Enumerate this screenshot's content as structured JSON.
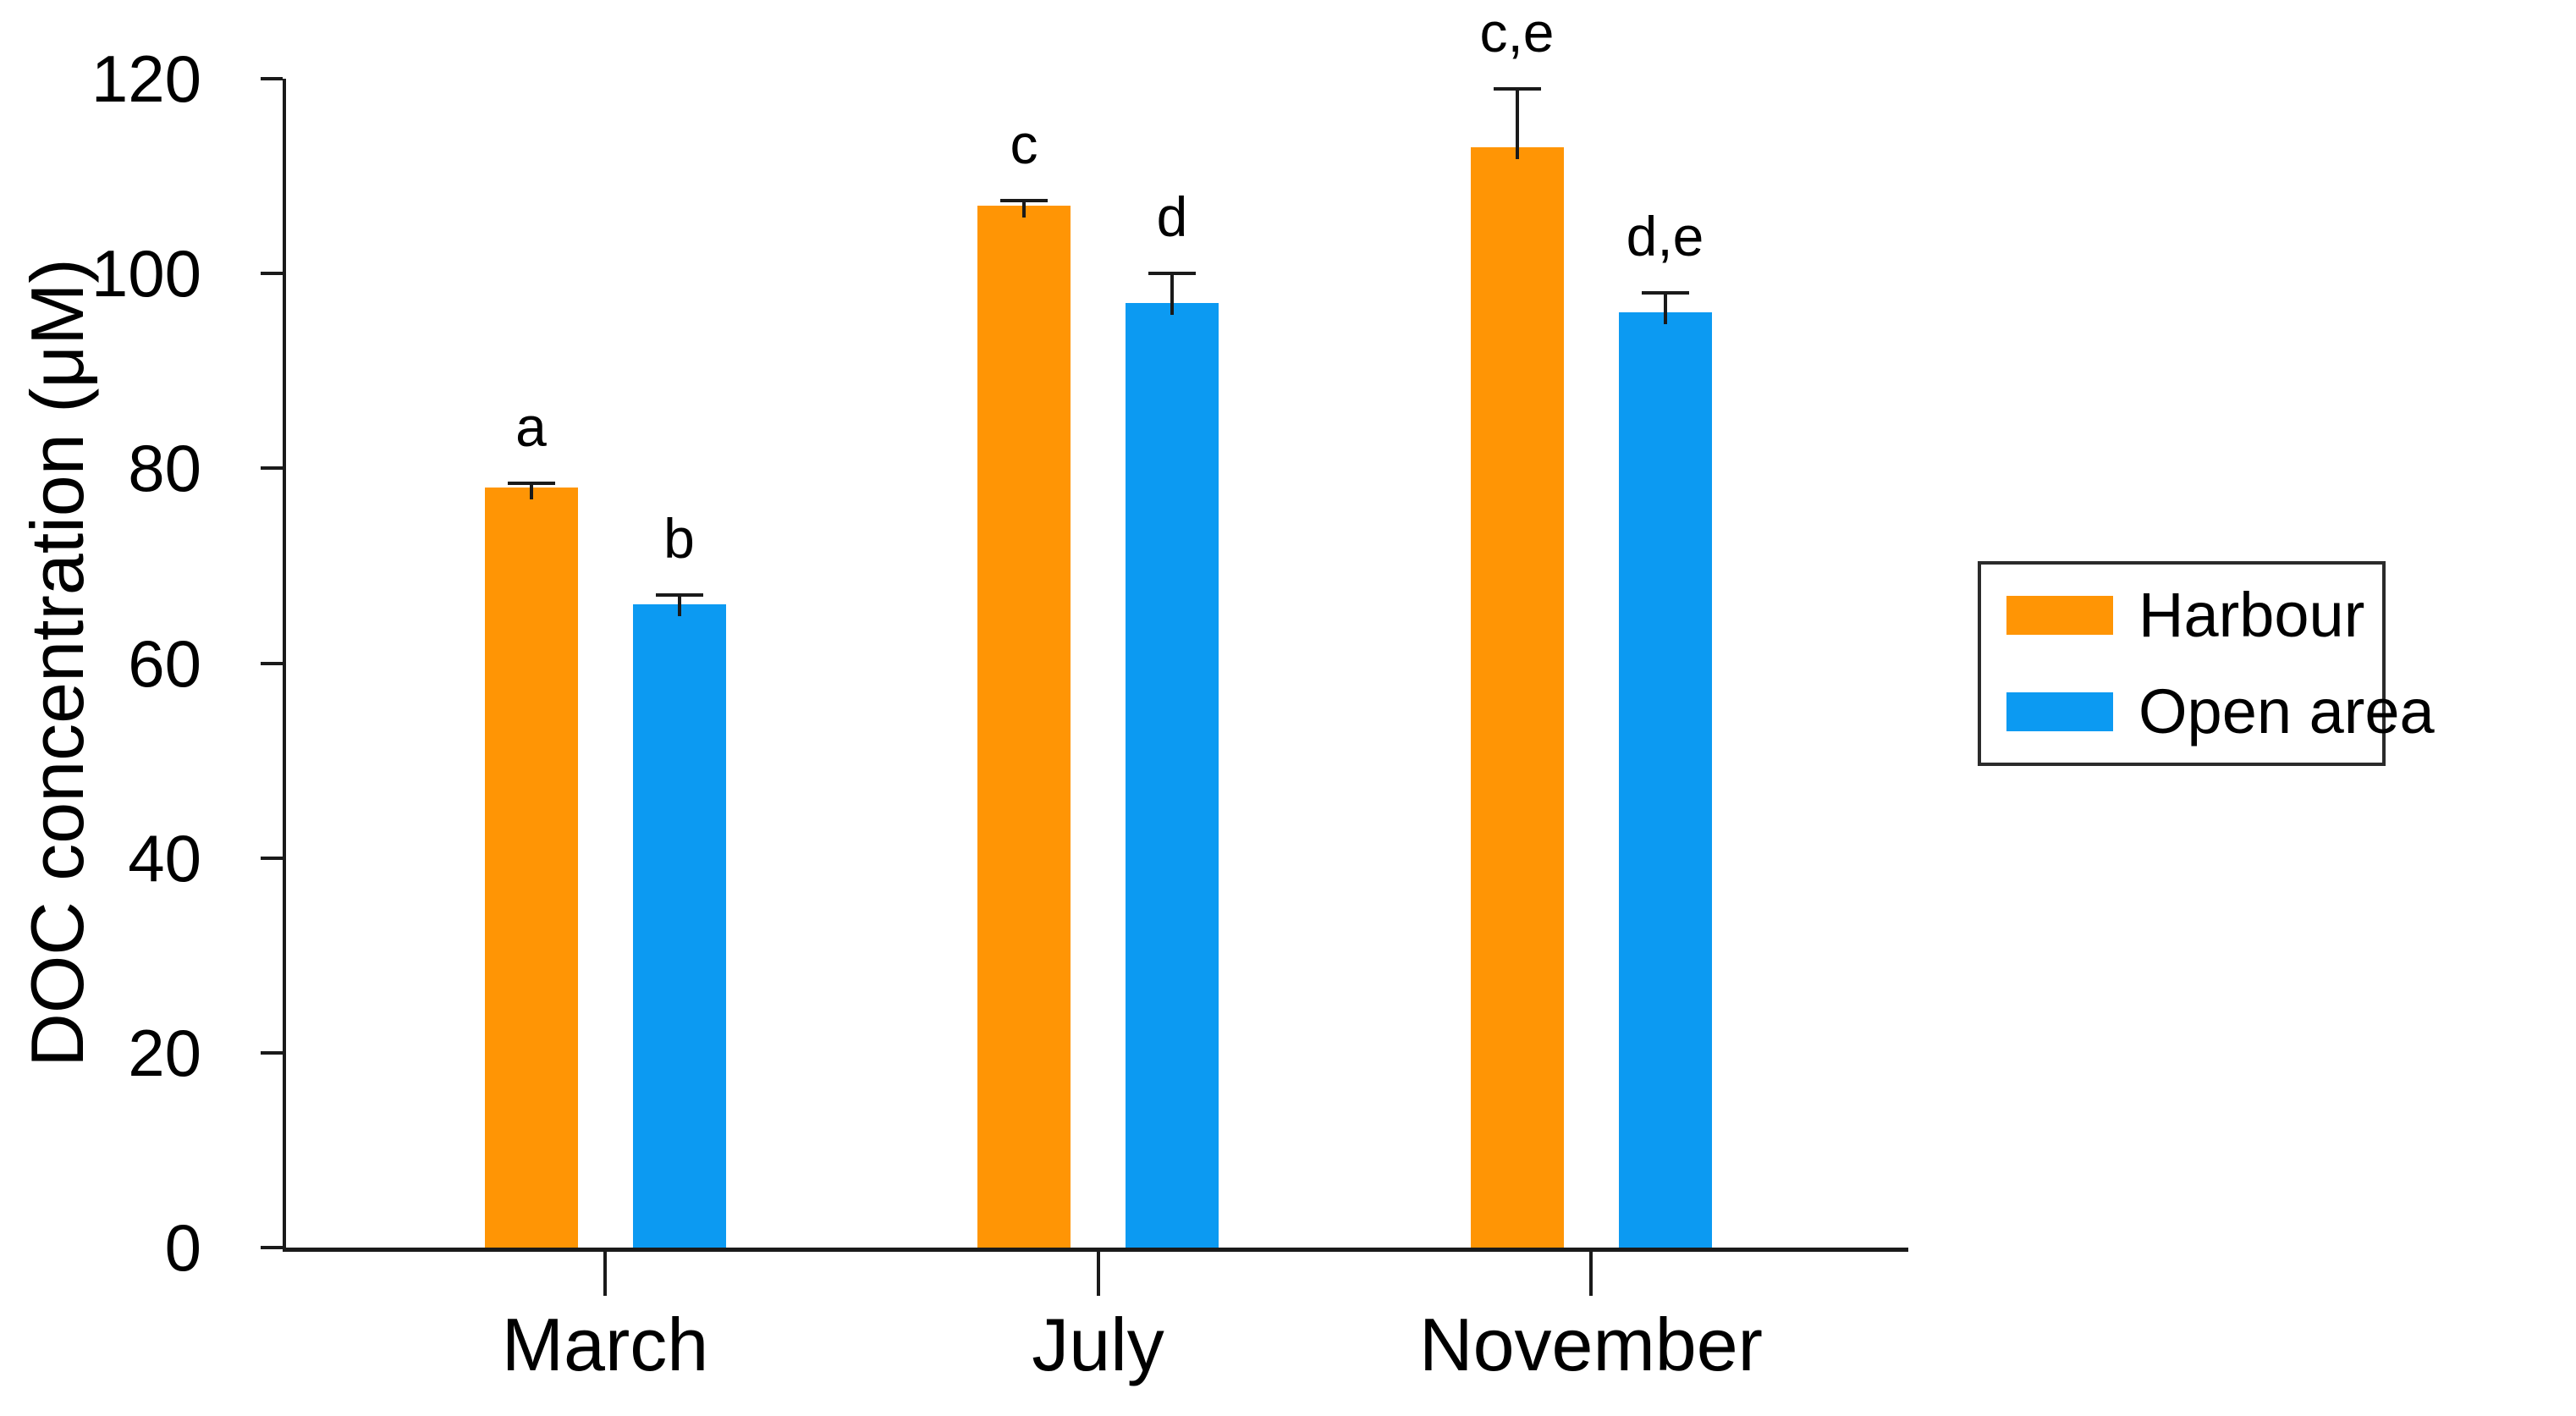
{
  "chart_data": {
    "type": "bar",
    "title": "",
    "xlabel": "",
    "ylabel": "DOC concentration (μM)",
    "categories": [
      "March",
      "July",
      "November"
    ],
    "series": [
      {
        "name": "Harbour",
        "color": "#FF9505",
        "values": [
          78,
          107,
          113
        ],
        "errors": [
          0.5,
          0.5,
          6
        ],
        "annotations": [
          "a",
          "c",
          "c,e"
        ]
      },
      {
        "name": "Open area",
        "color": "#0C9AF2",
        "values": [
          66,
          97,
          96
        ],
        "errors": [
          1,
          3,
          2
        ],
        "annotations": [
          "b",
          "d",
          "d,e"
        ]
      }
    ],
    "ylim": [
      0,
      120
    ],
    "yticks": [
      0,
      20,
      40,
      60,
      80,
      100,
      120
    ],
    "grid": false,
    "error_bars": true,
    "legend_position": "right",
    "axis_color": "#1a1a1a",
    "text_color": "#000000"
  }
}
